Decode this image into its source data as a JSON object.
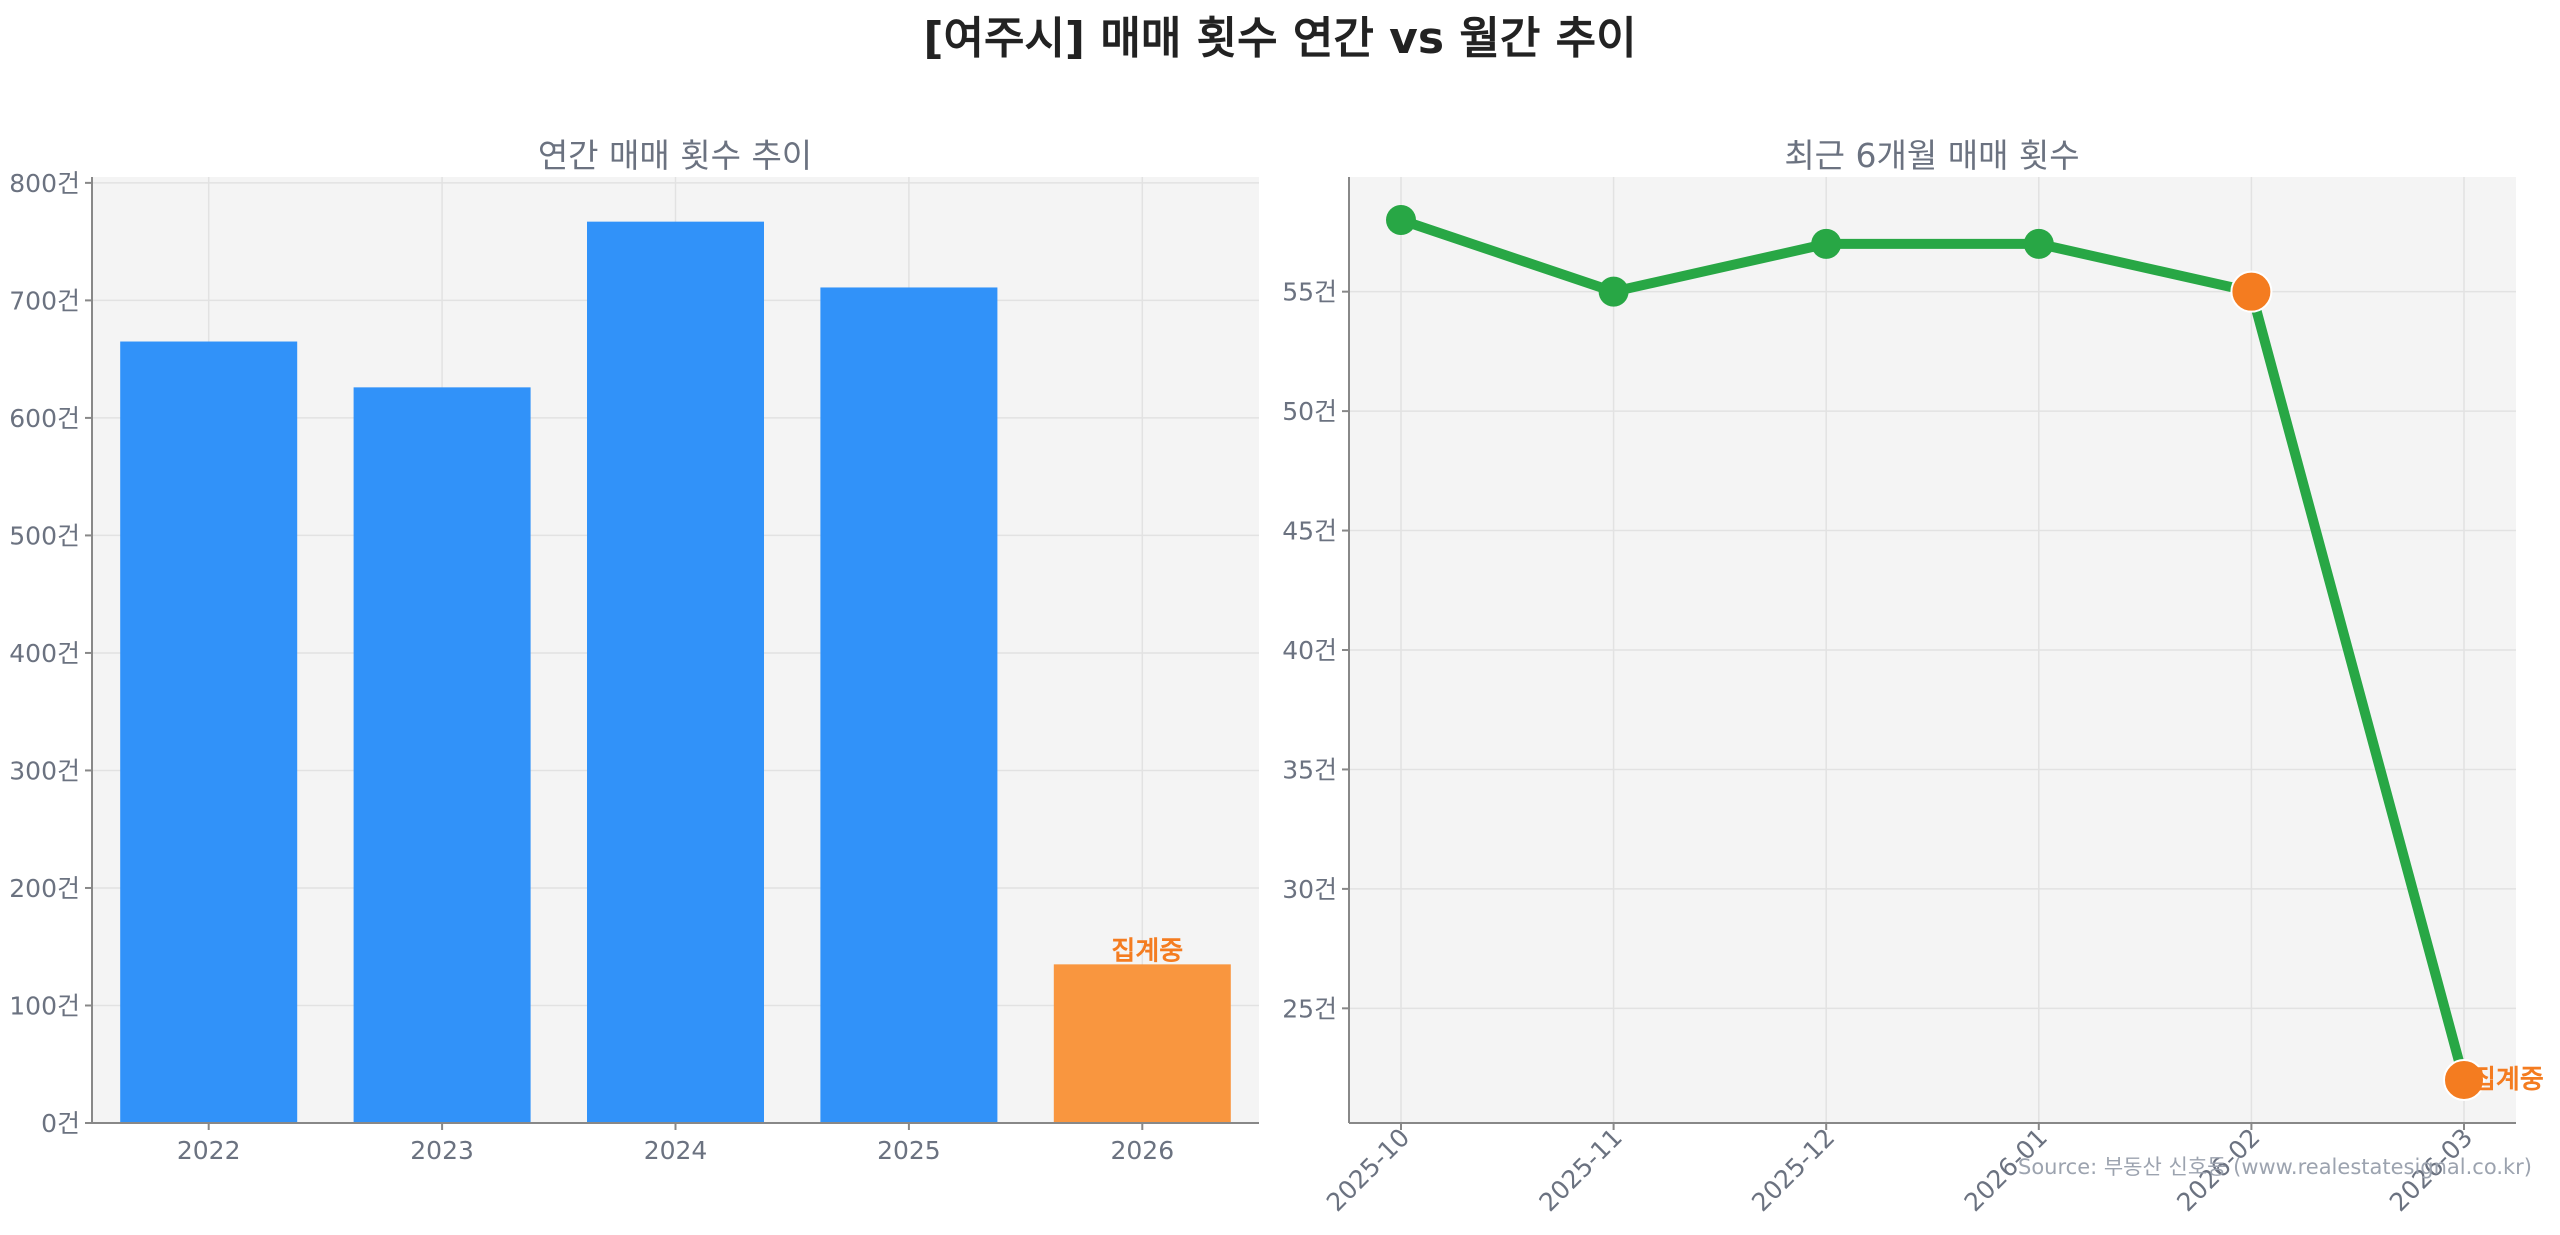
{
  "title": "[여주시] 매매 횟수 연간 vs 월간 추이",
  "source": "Source: 부동산 신호등 (www.realestatesignal.co.kr)",
  "colors": {
    "bar": "#3192f9",
    "bar_pending": "#f9963f",
    "line": "#28a745",
    "pending_marker": "#f47c20",
    "annotation": "#f47c20"
  },
  "chart_data": [
    {
      "type": "bar",
      "title": "연간 매매 횟수 추이",
      "categories": [
        "2022",
        "2023",
        "2024",
        "2025",
        "2026"
      ],
      "values": [
        665,
        626,
        767,
        711,
        135
      ],
      "ylim": [
        0,
        805
      ],
      "yticks": [
        0,
        100,
        200,
        300,
        400,
        500,
        600,
        700,
        800
      ],
      "ytick_labels": [
        "0건",
        "100건",
        "200건",
        "300건",
        "400건",
        "500건",
        "600건",
        "700건",
        "800건"
      ],
      "annotation": {
        "category": "2026",
        "text": "집계중"
      },
      "grid": true
    },
    {
      "type": "line",
      "title": "최근 6개월 매매 횟수",
      "x": [
        "2025-10",
        "2025-11",
        "2025-12",
        "2026-01",
        "2026-02",
        "2026-03"
      ],
      "values": [
        58,
        55,
        57,
        57,
        55,
        22
      ],
      "highlight": [
        "2026-02",
        "2026-03"
      ],
      "ylim": [
        20.2,
        59.8
      ],
      "yticks": [
        25,
        30,
        35,
        40,
        45,
        50,
        55
      ],
      "ytick_labels": [
        "25건",
        "30건",
        "35건",
        "40건",
        "45건",
        "50건",
        "55건"
      ],
      "annotation": {
        "x": "2026-03",
        "text": "집계중"
      },
      "grid": true
    }
  ]
}
